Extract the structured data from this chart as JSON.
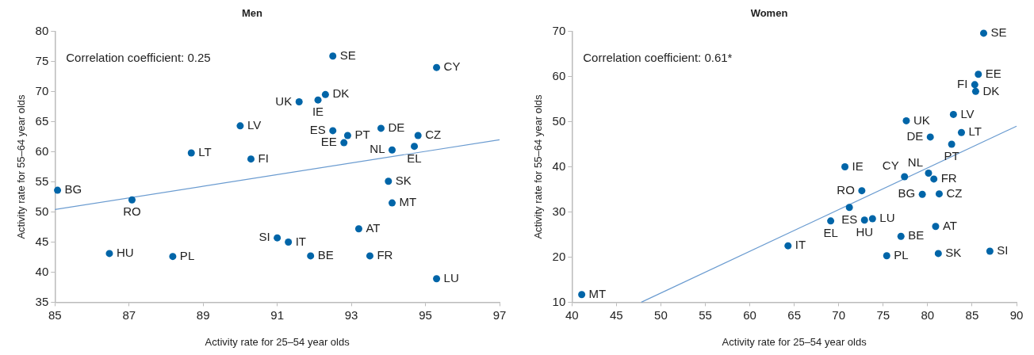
{
  "chart_data": [
    {
      "type": "scatter",
      "title": "Men",
      "xlabel": "Activity rate for 25–54 year olds",
      "ylabel": "Activity rate for 55–64 year olds",
      "annotations": [
        "Correlation coefficient: 0.25"
      ],
      "grid": false,
      "legend": false,
      "marker": "circle",
      "xlim": [
        85,
        97
      ],
      "xticks": [
        85,
        87,
        89,
        91,
        93,
        95,
        97
      ],
      "ylim": [
        35,
        80
      ],
      "yticks": [
        35,
        40,
        45,
        50,
        55,
        60,
        65,
        70,
        75,
        80
      ],
      "series": [
        {
          "type": "scatter",
          "color": "#0065a8",
          "x": [
            85.07,
            87.08,
            86.47,
            88.18,
            88.68,
            90.0,
            90.29,
            91.59,
            92.1,
            92.3,
            92.5,
            92.5,
            92.9,
            92.8,
            93.8,
            94.1,
            94.8,
            94.7,
            95.3,
            94.0,
            94.1,
            93.2,
            91.0,
            91.3,
            91.9,
            93.5,
            95.3
          ],
          "values": [
            53.6,
            52.0,
            43.1,
            42.6,
            59.8,
            64.3,
            58.8,
            68.3,
            68.6,
            69.5,
            75.9,
            63.5,
            62.7,
            61.5,
            63.9,
            60.3,
            62.7,
            60.9,
            74.0,
            55.1,
            51.5,
            47.2,
            45.7,
            45.0,
            42.7,
            42.7,
            38.9
          ],
          "value_labels": [
            "BG",
            "RO",
            "HU",
            "PL",
            "LT",
            "LV",
            "FI",
            "UK",
            "IE",
            "DK",
            "SE",
            "ES",
            "PT",
            "EE",
            "DE",
            "NL",
            "CZ",
            "EL",
            "CY",
            "SK",
            "MT",
            "AT",
            "SI",
            "IT",
            "BE",
            "FR",
            "LU"
          ]
        },
        {
          "type": "line",
          "color": "#6a9bd0",
          "marker": "none",
          "x": [
            85,
            97
          ],
          "values": [
            50.4,
            62.0
          ]
        }
      ]
    },
    {
      "type": "scatter",
      "title": "Women",
      "xlabel": "Activity rate for 25–54 year olds",
      "ylabel": "Activity rate for 55–64 year olds",
      "annotations": [
        "Correlation coefficient: 0.61*"
      ],
      "grid": false,
      "legend": false,
      "marker": "circle",
      "xlim": [
        40,
        90
      ],
      "xticks": [
        40,
        45,
        50,
        55,
        60,
        65,
        70,
        75,
        80,
        85,
        90
      ],
      "ylim": [
        10,
        70
      ],
      "yticks": [
        10,
        20,
        30,
        40,
        50,
        60,
        70
      ],
      "series": [
        {
          "type": "scatter",
          "color": "#0065a8",
          "x": [
            86.3,
            85.7,
            85.3,
            85.4,
            82.9,
            77.6,
            83.8,
            80.3,
            82.7,
            70.7,
            80.1,
            77.4,
            80.7,
            72.6,
            79.4,
            81.3,
            71.2,
            69.1,
            72.9,
            73.8,
            80.9,
            77.0,
            64.3,
            75.4,
            81.2,
            87.0,
            41.1
          ],
          "values": [
            69.6,
            60.5,
            58.2,
            56.7,
            51.6,
            50.2,
            47.6,
            46.6,
            45.0,
            40.0,
            38.6,
            37.8,
            37.3,
            34.7,
            33.9,
            34.0,
            31.0,
            28.0,
            28.2,
            28.5,
            26.8,
            24.6,
            22.5,
            20.3,
            20.8,
            21.3,
            11.7
          ],
          "value_labels": [
            "SE",
            "EE",
            "FI",
            "DK",
            "LV",
            "UK",
            "LT",
            "DE",
            "PT",
            "IE",
            "NL",
            "CY",
            "FR",
            "RO",
            "BG",
            "CZ",
            "ES",
            "EL",
            "HU",
            "LU",
            "AT",
            "BE",
            "IT",
            "PL",
            "SK",
            "SI",
            "MT"
          ]
        },
        {
          "type": "line",
          "color": "#6a9bd0",
          "marker": "none",
          "x": [
            47.8,
            90
          ],
          "values": [
            10,
            49.0
          ]
        }
      ]
    }
  ]
}
